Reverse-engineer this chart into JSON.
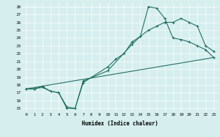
{
  "xlabel": "Humidex (Indice chaleur)",
  "background_color": "#d6eeee",
  "line_color": "#1a6b5a",
  "xlim": [
    -0.5,
    23.5
  ],
  "ylim": [
    14.5,
    28.5
  ],
  "xticks": [
    0,
    1,
    2,
    3,
    4,
    5,
    6,
    7,
    8,
    9,
    10,
    11,
    12,
    13,
    14,
    15,
    16,
    17,
    18,
    19,
    20,
    21,
    22,
    23
  ],
  "yticks": [
    15,
    16,
    17,
    18,
    19,
    20,
    21,
    22,
    23,
    24,
    25,
    26,
    27,
    28
  ],
  "line1_x": [
    0,
    1,
    2,
    3,
    4,
    5,
    6,
    7,
    10,
    11,
    12,
    13,
    14,
    15,
    16,
    17,
    18,
    19,
    20,
    21,
    22,
    23
  ],
  "line1_y": [
    17.5,
    17.5,
    17.7,
    17.2,
    17.0,
    15.0,
    15.0,
    18.3,
    20.3,
    21.3,
    22.0,
    23.5,
    24.2,
    25.0,
    25.5,
    26.0,
    26.0,
    26.5,
    26.0,
    25.5,
    23.0,
    22.3
  ],
  "line2_x": [
    0,
    1,
    2,
    3,
    4,
    5,
    6,
    7,
    10,
    13,
    14,
    15,
    16,
    17,
    18,
    19,
    20,
    21,
    22,
    23
  ],
  "line2_y": [
    17.5,
    17.5,
    17.8,
    17.2,
    17.0,
    15.2,
    15.0,
    18.5,
    19.8,
    23.2,
    24.2,
    28.0,
    27.8,
    26.5,
    24.0,
    23.8,
    23.5,
    23.0,
    22.5,
    21.5
  ],
  "line3_x": [
    0,
    23
  ],
  "line3_y": [
    17.5,
    21.5
  ]
}
